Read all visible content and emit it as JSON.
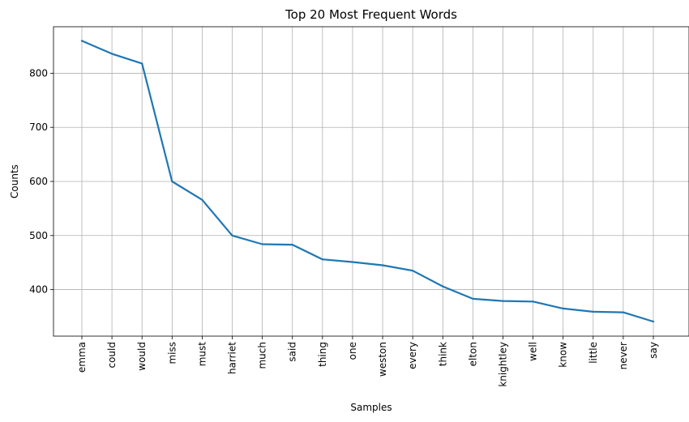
{
  "chart_data": {
    "type": "line",
    "title": "Top 20 Most Frequent Words",
    "xlabel": "Samples",
    "ylabel": "Counts",
    "categories": [
      "emma",
      "could",
      "would",
      "miss",
      "must",
      "harriet",
      "much",
      "said",
      "thing",
      "one",
      "weston",
      "every",
      "think",
      "elton",
      "knightley",
      "well",
      "know",
      "little",
      "never",
      "say"
    ],
    "series": [
      {
        "values": [
          860,
          836,
          818,
          600,
          566,
          500,
          484,
          483,
          456,
          451,
          445,
          435,
          406,
          383,
          379,
          378,
          365,
          359,
          358,
          341
        ]
      }
    ],
    "ylim": [
      314,
      886
    ],
    "yticks": [
      400,
      500,
      600,
      700,
      800
    ],
    "grid": true,
    "line_color": "#1f77b4"
  }
}
